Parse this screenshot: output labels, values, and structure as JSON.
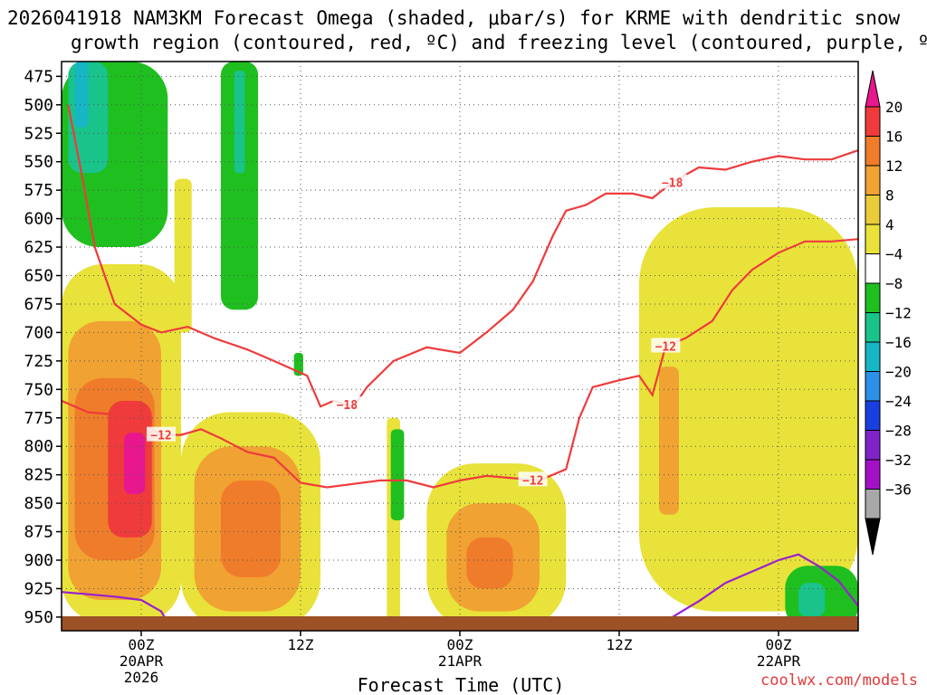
{
  "chart_data": {
    "type": "heatmap",
    "title_line1": "2026041918 NAM3KM Forecast Omega (shaded, μbar/s) for KRME with dendritic snow",
    "title_line2": "growth region (contoured, red, ºC) and freezing level (contoured, purple, ºC)",
    "xlabel": "Forecast Time (UTC)",
    "watermark": "coolwx.com/models",
    "forecast_hour_range": [
      -6,
      54
    ],
    "pressure_range_hpa": [
      462,
      962
    ],
    "y_ticks": [
      475,
      500,
      525,
      550,
      575,
      600,
      625,
      650,
      675,
      700,
      725,
      750,
      775,
      800,
      825,
      850,
      875,
      900,
      925,
      950
    ],
    "x_ticks": [
      {
        "hour": 0,
        "label": "00Z",
        "sub1": "20APR",
        "sub2": "2026"
      },
      {
        "hour": 12,
        "label": "12Z",
        "sub1": "",
        "sub2": ""
      },
      {
        "hour": 24,
        "label": "00Z",
        "sub1": "21APR",
        "sub2": ""
      },
      {
        "hour": 36,
        "label": "12Z",
        "sub1": "",
        "sub2": ""
      },
      {
        "hour": 48,
        "label": "00Z",
        "sub1": "22APR",
        "sub2": ""
      }
    ],
    "colorbar": {
      "labels": [
        "20",
        "16",
        "12",
        "8",
        "4",
        "−4",
        "−8",
        "−12",
        "−16",
        "−20",
        "−24",
        "−28",
        "−32",
        "−36"
      ],
      "colors": [
        "#e8178e",
        "#ef3b3b",
        "#ef7c2a",
        "#f0a232",
        "#eacb3a",
        "#e8e23a",
        "#ffffff",
        "#1fbf1f",
        "#19c38a",
        "#17b6c4",
        "#2a90e8",
        "#1a3fe0",
        "#7f24c8",
        "#a410c6",
        "#a8a8a8",
        "#000000"
      ]
    },
    "shading": [
      {
        "name": "descent-band-left",
        "level": 4,
        "hour": [
          -6,
          3
        ],
        "hpa": [
          640,
          955
        ]
      },
      {
        "name": "descent-core-left",
        "level": 8,
        "hour": [
          -5.5,
          1.5
        ],
        "hpa": [
          690,
          935
        ]
      },
      {
        "name": "descent-strong-left",
        "level": 12,
        "hour": [
          -5,
          1
        ],
        "hpa": [
          740,
          900
        ]
      },
      {
        "name": "descent-stronger-left",
        "level": 16,
        "hour": [
          -2.5,
          0.8
        ],
        "hpa": [
          760,
          880
        ]
      },
      {
        "name": "descent-max-left",
        "level": 20,
        "hour": [
          -1.3,
          0.3
        ],
        "hpa": [
          788,
          842
        ]
      },
      {
        "name": "descent-band-mid",
        "level": 4,
        "hour": [
          3,
          13.5
        ],
        "hpa": [
          770,
          960
        ]
      },
      {
        "name": "descent-core-mid",
        "level": 8,
        "hour": [
          4,
          12
        ],
        "hpa": [
          800,
          945
        ]
      },
      {
        "name": "descent-strong-mid",
        "level": 12,
        "hour": [
          6,
          10.5
        ],
        "hpa": [
          830,
          915
        ]
      },
      {
        "name": "descent-column-4z",
        "level": 4,
        "hour": [
          2.5,
          3.8
        ],
        "hpa": [
          565,
          700
        ]
      },
      {
        "name": "descent-band-21apr",
        "level": 4,
        "hour": [
          21.5,
          32
        ],
        "hpa": [
          815,
          960
        ]
      },
      {
        "name": "descent-core-21apr",
        "level": 8,
        "hour": [
          23,
          30
        ],
        "hpa": [
          850,
          945
        ]
      },
      {
        "name": "descent-strong-21apr",
        "level": 12,
        "hour": [
          24.5,
          28
        ],
        "hpa": [
          880,
          925
        ]
      },
      {
        "name": "descent-column-18z",
        "level": 4,
        "hour": [
          18.5,
          19.5
        ],
        "hpa": [
          775,
          955
        ]
      },
      {
        "name": "descent-band-22apr",
        "level": 4,
        "hour": [
          37.5,
          54
        ],
        "hpa": [
          590,
          945
        ]
      },
      {
        "name": "descent-core-22apr",
        "level": 8,
        "hour": [
          39,
          40.5
        ],
        "hpa": [
          730,
          860
        ]
      },
      {
        "name": "ascent-top-left",
        "level": -4,
        "hour": [
          -6,
          2
        ],
        "hpa": [
          462,
          625
        ]
      },
      {
        "name": "ascent-top-left-core",
        "level": -8,
        "hour": [
          -5.5,
          -2.5
        ],
        "hpa": [
          462,
          560
        ]
      },
      {
        "name": "ascent-top-left-max",
        "level": -12,
        "hour": [
          -5,
          -4
        ],
        "hpa": [
          462,
          520
        ]
      },
      {
        "name": "ascent-column-6z",
        "level": -4,
        "hour": [
          6,
          8.8
        ],
        "hpa": [
          462,
          680
        ]
      },
      {
        "name": "ascent-column-6z-core",
        "level": -8,
        "hour": [
          7,
          7.8
        ],
        "hpa": [
          470,
          560
        ]
      },
      {
        "name": "ascent-small-12z",
        "level": -4,
        "hour": [
          11.5,
          12.2
        ],
        "hpa": [
          718,
          738
        ]
      },
      {
        "name": "ascent-small-19z",
        "level": -4,
        "hour": [
          18.8,
          19.8
        ],
        "hpa": [
          785,
          865
        ]
      },
      {
        "name": "ascent-low-right",
        "level": -4,
        "hour": [
          48.5,
          54
        ],
        "hpa": [
          905,
          960
        ]
      },
      {
        "name": "ascent-low-right-core",
        "level": -8,
        "hour": [
          49.5,
          51.5
        ],
        "hpa": [
          920,
          950
        ]
      }
    ],
    "contours": [
      {
        "name": "dgz-top",
        "label": "−18",
        "color": "#ee3b3b",
        "label_hour": 15.5,
        "points": [
          [
            -5.5,
            500
          ],
          [
            -4.5,
            560
          ],
          [
            -3.5,
            625
          ],
          [
            -2,
            675
          ],
          [
            0,
            693
          ],
          [
            1.5,
            700
          ],
          [
            3.5,
            695
          ],
          [
            5.5,
            705
          ],
          [
            8,
            715
          ],
          [
            10,
            725
          ],
          [
            12.5,
            738
          ],
          [
            13.5,
            765
          ],
          [
            14.5,
            760
          ],
          [
            16,
            765
          ],
          [
            17,
            748
          ],
          [
            19,
            725
          ],
          [
            21.5,
            713
          ],
          [
            24,
            718
          ],
          [
            26,
            700
          ],
          [
            28,
            680
          ],
          [
            29.5,
            655
          ],
          [
            31,
            615
          ],
          [
            32,
            593
          ],
          [
            33.5,
            588
          ],
          [
            35,
            578
          ],
          [
            37,
            578
          ],
          [
            38.5,
            582
          ],
          [
            40,
            568
          ],
          [
            42,
            555
          ],
          [
            44,
            557
          ],
          [
            46,
            550
          ],
          [
            48,
            545
          ],
          [
            50,
            548
          ],
          [
            52,
            548
          ],
          [
            54,
            540
          ]
        ]
      },
      {
        "name": "dgz-bottom",
        "label": "−12",
        "color": "#ee3b3b",
        "label_hour": 1.5,
        "points": [
          [
            -6,
            760
          ],
          [
            -4,
            770
          ],
          [
            -2,
            772
          ],
          [
            0,
            780
          ],
          [
            1.5,
            790
          ],
          [
            3,
            790
          ],
          [
            4.5,
            785
          ],
          [
            6,
            793
          ],
          [
            8,
            805
          ],
          [
            10,
            810
          ],
          [
            12,
            832
          ],
          [
            14,
            836
          ],
          [
            16,
            833
          ],
          [
            18,
            830
          ],
          [
            20,
            830
          ],
          [
            22,
            836
          ],
          [
            24,
            830
          ],
          [
            26,
            826
          ],
          [
            28,
            828
          ],
          [
            30,
            830
          ],
          [
            32,
            820
          ],
          [
            33,
            775
          ],
          [
            34,
            748
          ],
          [
            36,
            742
          ],
          [
            37.5,
            738
          ],
          [
            38.5,
            755
          ],
          [
            39.5,
            712
          ],
          [
            41,
            705
          ],
          [
            43,
            690
          ],
          [
            44.5,
            663
          ],
          [
            46,
            645
          ],
          [
            48,
            630
          ],
          [
            50,
            620
          ],
          [
            52,
            620
          ],
          [
            54,
            618
          ]
        ]
      },
      {
        "name": "dgz-label-12-mid",
        "label": "−12",
        "color": "#ee3b3b",
        "label_hour": 29.5,
        "points": []
      },
      {
        "name": "dgz-label-12-right",
        "label": "−12",
        "color": "#ee3b3b",
        "label_hour": 39.5,
        "points": []
      },
      {
        "name": "dgz-label-18-right",
        "label": "−18",
        "color": "#ee3b3b",
        "label_hour": 40,
        "points": []
      },
      {
        "name": "freezing-level-left",
        "label": "",
        "color": "#9a1fd0",
        "points": [
          [
            -6,
            928
          ],
          [
            -4,
            930
          ],
          [
            -2,
            932
          ],
          [
            0,
            935
          ],
          [
            1.5,
            945
          ],
          [
            2,
            955
          ]
        ]
      },
      {
        "name": "freezing-level-right",
        "label": "",
        "color": "#9a1fd0",
        "points": [
          [
            38.5,
            960
          ],
          [
            40,
            950
          ],
          [
            42,
            936
          ],
          [
            44,
            920
          ],
          [
            46,
            910
          ],
          [
            48,
            900
          ],
          [
            49.5,
            895
          ],
          [
            51,
            905
          ],
          [
            52.5,
            918
          ],
          [
            54,
            940
          ]
        ]
      }
    ],
    "terrain_top_hpa": 950
  }
}
